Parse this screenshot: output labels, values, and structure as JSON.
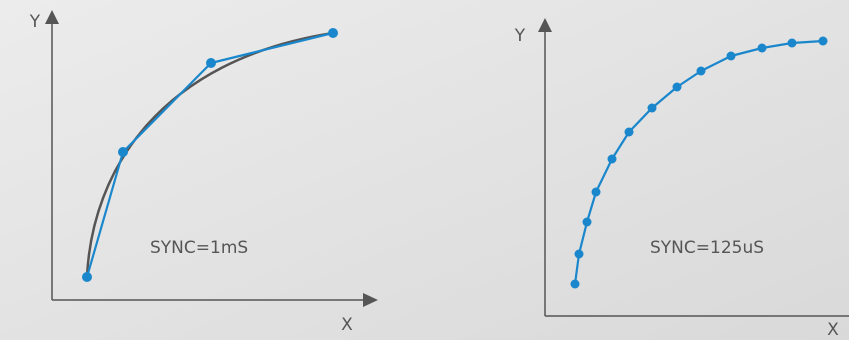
{
  "left": {
    "y_axis": "Y",
    "x_axis": "X",
    "label": "SYNC=1mS"
  },
  "right": {
    "y_axis": "Y",
    "x_axis": "X",
    "label": "SYNC=125uS"
  }
}
